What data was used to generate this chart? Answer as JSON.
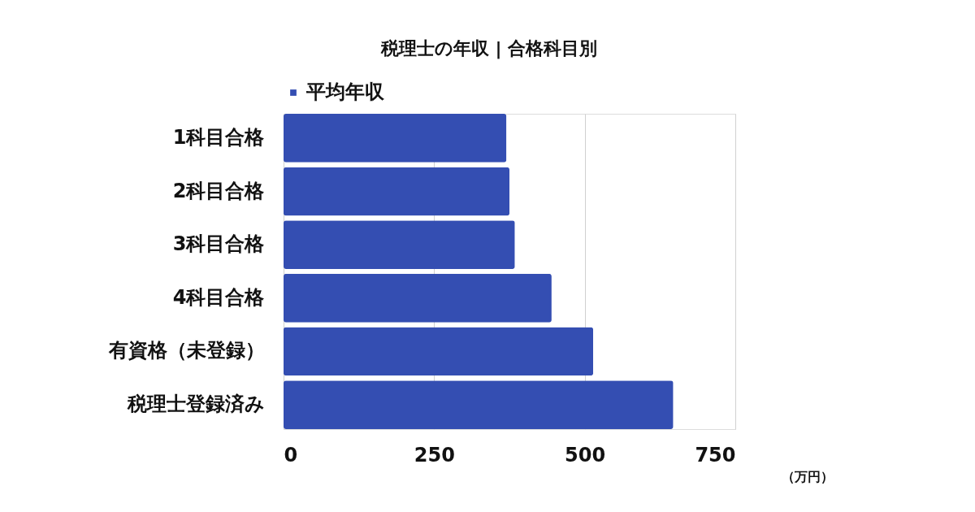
{
  "chart_data": {
    "type": "bar",
    "orientation": "horizontal",
    "title": "税理士の年収 | 合格科目別",
    "xlabel": "（万円）",
    "categories": [
      "1科目合格",
      "2科目合格",
      "3科目合格",
      "4科目合格",
      "有資格（未登録）",
      "税理士登録済み"
    ],
    "series": [
      {
        "name": "平均年収",
        "color": "#344eb2",
        "values": [
          370,
          375,
          384,
          445,
          514,
          647
        ]
      }
    ],
    "xlim": [
      0,
      750
    ],
    "xticks": [
      0,
      250,
      500,
      750
    ],
    "grid": "x",
    "legend": "top"
  }
}
